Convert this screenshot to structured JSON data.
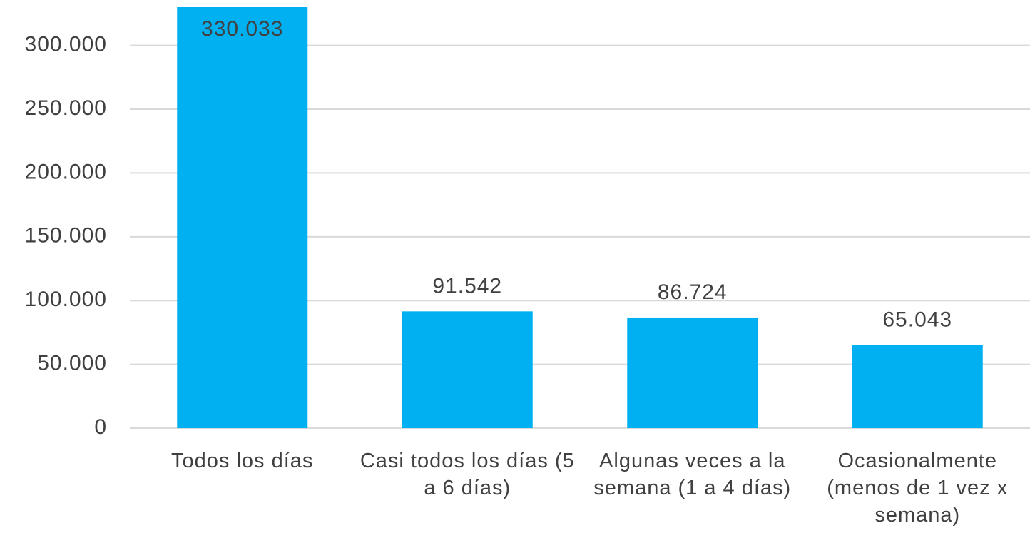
{
  "chart_data": {
    "type": "bar",
    "categories": [
      "Todos los días",
      "Casi todos los días (5 a 6 días)",
      "Algunas veces a la semana (1 a 4 días)",
      "Ocasionalmente (menos de 1 vez x semana)"
    ],
    "values": [
      330033,
      91542,
      86724,
      65043
    ],
    "value_labels": [
      "330.033",
      "91.542",
      "86.724",
      "65.043"
    ],
    "color": "#00b0f0",
    "ylim": [
      0,
      330000
    ],
    "yticks": [
      0,
      {
        "value": 50000,
        "label": "50.000"
      },
      {
        "value": 100000,
        "label": "100.000"
      },
      {
        "value": 150000,
        "label": "150.000"
      },
      {
        "value": 200000,
        "label": "200.000"
      },
      {
        "value": 250000,
        "label": "250.000"
      },
      {
        "value": 300000,
        "label": "300.000"
      }
    ],
    "grid": true
  }
}
